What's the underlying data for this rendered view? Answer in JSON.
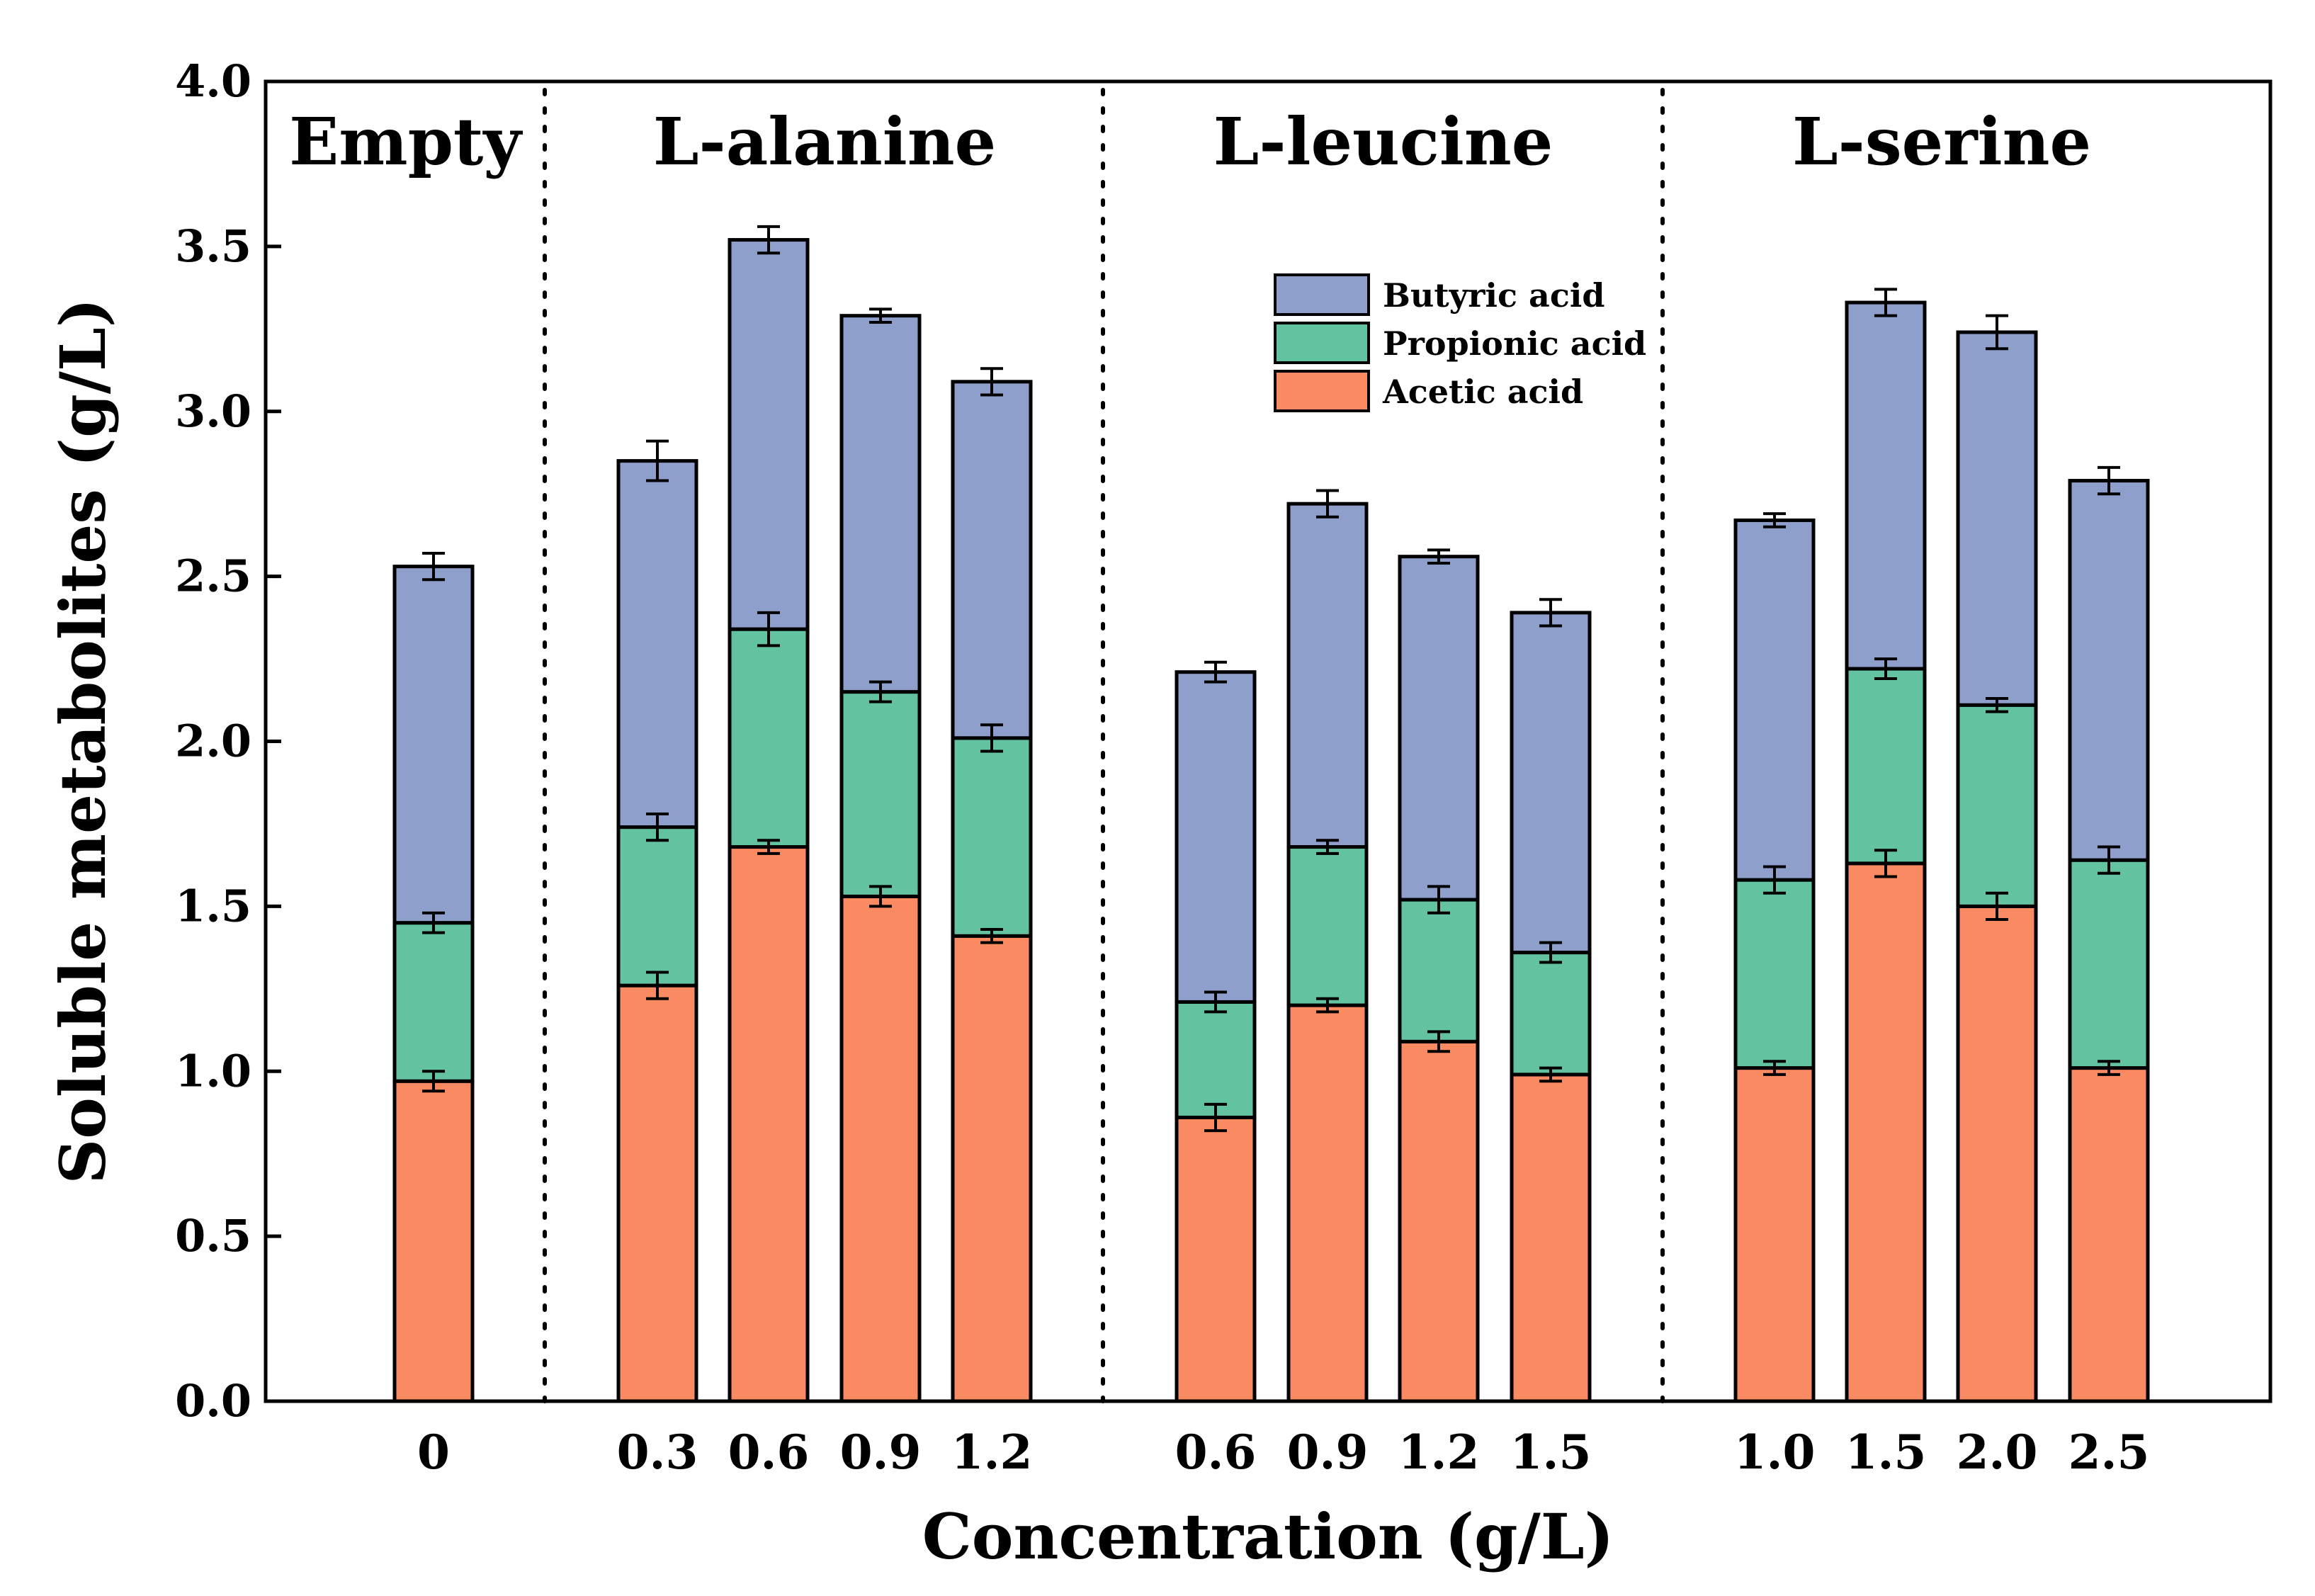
{
  "chart_data": {
    "type": "bar",
    "stacked": true,
    "xlabel": "Concentration (g/L)",
    "ylabel": "Soluble metabolites (g/L)",
    "ylim": [
      0,
      4.0
    ],
    "yticks": [
      "0.0",
      "0.5",
      "1.0",
      "1.5",
      "2.0",
      "2.5",
      "3.0",
      "3.5",
      "4.0"
    ],
    "grid": false,
    "legend_position": "top-center",
    "groups": [
      {
        "label": "Empty",
        "categories": [
          "0"
        ]
      },
      {
        "label": "L-alanine",
        "categories": [
          "0.3",
          "0.6",
          "0.9",
          "1.2"
        ]
      },
      {
        "label": "L-leucine",
        "categories": [
          "0.6",
          "0.9",
          "1.2",
          "1.5"
        ]
      },
      {
        "label": "L-serine",
        "categories": [
          "1.0",
          "1.5",
          "2.0",
          "2.5"
        ]
      }
    ],
    "series": [
      {
        "name": "Acetic acid",
        "color": "#fa8a62",
        "values": [
          0.97,
          1.26,
          1.68,
          1.53,
          1.41,
          0.86,
          1.2,
          1.09,
          0.99,
          1.01,
          1.63,
          1.5,
          1.01
        ],
        "errors": [
          0.03,
          0.04,
          0.02,
          0.03,
          0.02,
          0.04,
          0.02,
          0.03,
          0.02,
          0.02,
          0.04,
          0.04,
          0.02
        ]
      },
      {
        "name": "Propionic acid",
        "color": "#63c3a0",
        "values": [
          0.48,
          0.48,
          0.66,
          0.62,
          0.6,
          0.35,
          0.48,
          0.43,
          0.37,
          0.57,
          0.59,
          0.61,
          0.63
        ],
        "errors": [
          0.03,
          0.04,
          0.05,
          0.03,
          0.04,
          0.03,
          0.02,
          0.04,
          0.03,
          0.04,
          0.03,
          0.02,
          0.04
        ]
      },
      {
        "name": "Butyric acid",
        "color": "#8e9fcc",
        "values": [
          1.08,
          1.11,
          1.18,
          1.14,
          1.08,
          1.0,
          1.04,
          1.04,
          1.03,
          1.09,
          1.11,
          1.13,
          1.15
        ],
        "errors": [
          0.04,
          0.06,
          0.04,
          0.02,
          0.04,
          0.03,
          0.04,
          0.02,
          0.04,
          0.02,
          0.04,
          0.05,
          0.04
        ]
      }
    ]
  }
}
